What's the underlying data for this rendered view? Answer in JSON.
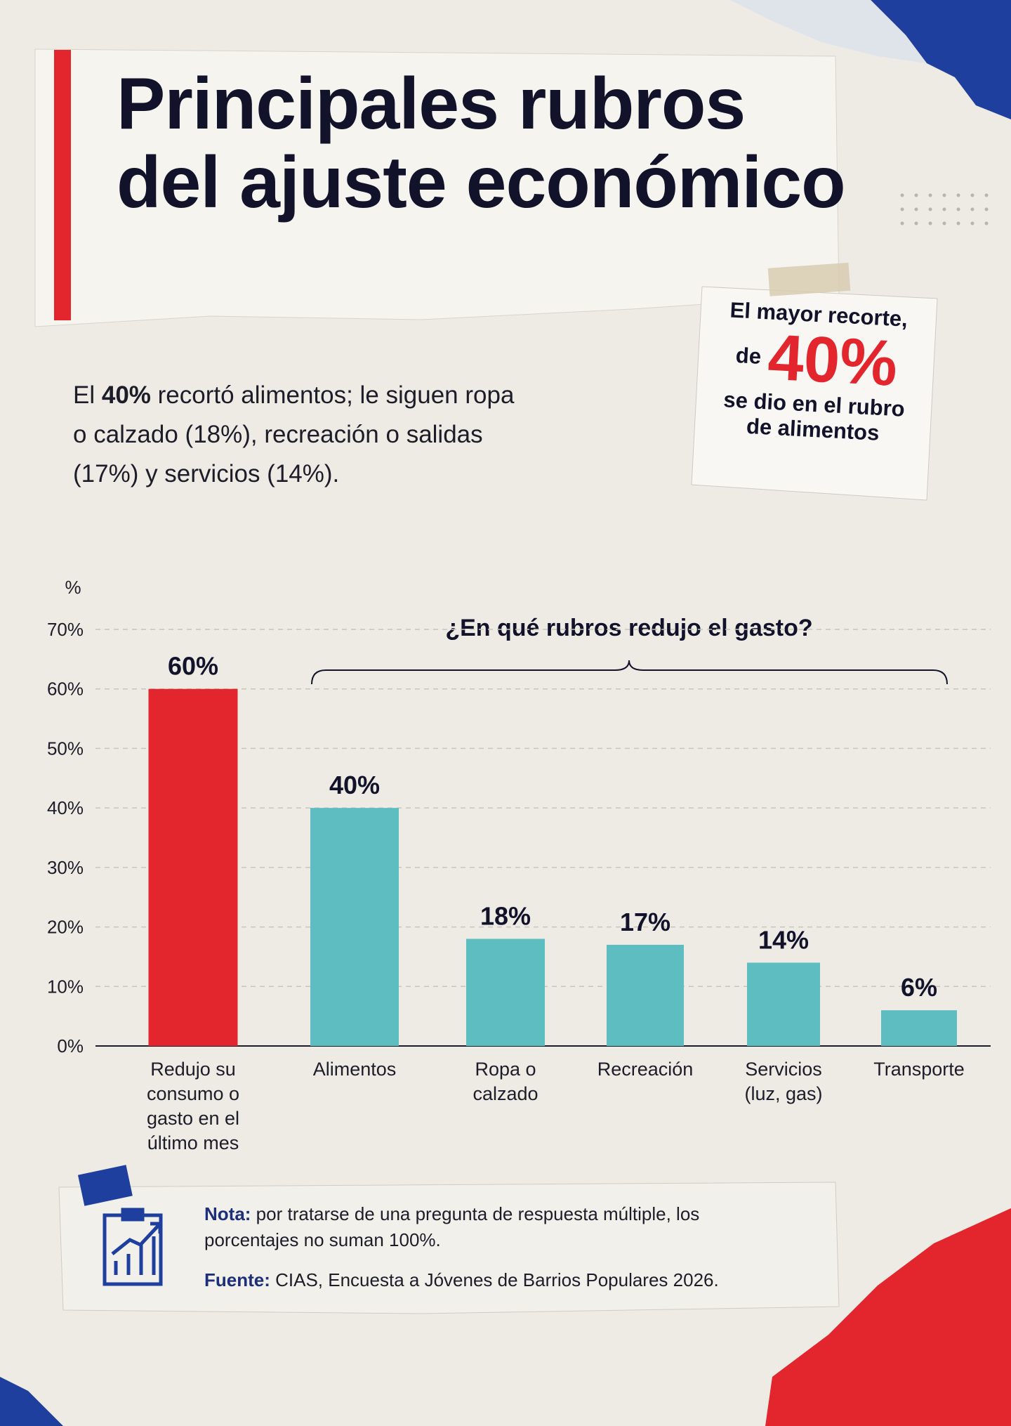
{
  "chart_data": {
    "type": "bar",
    "title": "Principales rubros del ajuste económico",
    "subtitle_parts": [
      "El ",
      "40%",
      " recortó alimentos; le siguen ropa o calzado (18%), recreación o salidas (17%) y servicios (14%)."
    ],
    "callout": [
      "El mayor recorte,",
      "de",
      "40%",
      "se dio en el rubro",
      "de alimentos"
    ],
    "annotation": "¿En qué rubros redujo el gasto?",
    "y_label": "%",
    "categories": [
      "Redujo su consumo o gasto en el último mes",
      "Alimentos",
      "Ropa o calzado",
      "Recreación",
      "Servicios (luz, gas)",
      "Transporte"
    ],
    "values": [
      60,
      40,
      18,
      17,
      14,
      6
    ],
    "value_labels": [
      "60%",
      "40%",
      "18%",
      "17%",
      "14%",
      "6%"
    ],
    "colors": [
      "#e3262d",
      "#5dbdc0",
      "#5dbdc0",
      "#5dbdc0",
      "#5dbdc0",
      "#5dbdc0"
    ],
    "ylim": [
      0,
      70
    ],
    "yticks": [
      {
        "value": 0,
        "label": "0%"
      },
      {
        "value": 10,
        "label": "10%"
      },
      {
        "value": 20,
        "label": "20%"
      },
      {
        "value": 30,
        "label": "30%"
      },
      {
        "value": 40,
        "label": "40%"
      },
      {
        "value": 50,
        "label": "50%"
      },
      {
        "value": 60,
        "label": "60%"
      },
      {
        "value": 70,
        "label": "70%"
      }
    ],
    "grid": true,
    "note": {
      "label": "Nota:",
      "text": "por tratarse de una pregunta de respuesta múltiple, los porcentajes no suman 100%."
    },
    "source": {
      "label": "Fuente:",
      "text": "CIAS, Encuesta a Jóvenes de Barrios Populares 2026."
    }
  }
}
